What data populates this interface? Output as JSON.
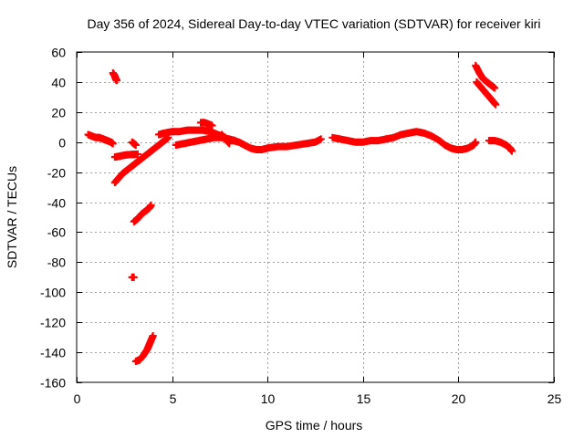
{
  "chart_data": {
    "type": "scatter",
    "title": "Day 356 of 2024, Sidereal Day-to-day VTEC variation (SDTVAR) for receiver kiri",
    "xlabel": "GPS time / hours",
    "ylabel": "SDTVAR / TECUs",
    "xlim": [
      0,
      25
    ],
    "ylim": [
      -160,
      60
    ],
    "xticks": [
      0,
      5,
      10,
      15,
      20,
      25
    ],
    "yticks": [
      -160,
      -140,
      -120,
      -100,
      -80,
      -60,
      -40,
      -20,
      0,
      20,
      40,
      60
    ],
    "grid": true,
    "marker": "plus",
    "color": "#ff0000",
    "segments": [
      {
        "x": [
          0.6,
          0.8,
          1.0,
          1.2,
          1.4,
          1.6,
          1.8,
          1.9
        ],
        "y": [
          5,
          4,
          3,
          3,
          2,
          1,
          0,
          -1
        ]
      },
      {
        "x": [
          1.9,
          2.0,
          2.05,
          2.1
        ],
        "y": [
          46,
          44,
          42,
          41
        ]
      },
      {
        "x": [
          2.0,
          2.2,
          2.4,
          2.6,
          2.8,
          3.0,
          3.2
        ],
        "y": [
          -10,
          -9.5,
          -9,
          -8.5,
          -8.3,
          -8.2,
          -8
        ]
      },
      {
        "x": [
          2.9,
          3.0,
          3.1
        ],
        "y": [
          0,
          -1,
          -2
        ]
      },
      {
        "x": [
          2.0,
          2.2,
          2.4,
          2.6,
          2.8,
          3.0,
          3.2,
          3.4,
          3.6,
          3.8,
          4.0,
          4.2,
          4.4,
          4.6,
          4.8
        ],
        "y": [
          -27,
          -24,
          -21,
          -19,
          -17,
          -15,
          -13,
          -11,
          -9,
          -7,
          -5,
          -3,
          -1,
          1,
          3
        ]
      },
      {
        "x": [
          3.0,
          3.2,
          3.4,
          3.6,
          3.8,
          3.9
        ],
        "y": [
          -53,
          -51,
          -48,
          -46,
          -44,
          -42
        ]
      },
      {
        "x": [
          2.9,
          3.0
        ],
        "y": [
          -90,
          -90
        ]
      },
      {
        "x": [
          3.1,
          3.3,
          3.5,
          3.7,
          3.8,
          3.9,
          4.0
        ],
        "y": [
          -146,
          -145,
          -142,
          -138,
          -135,
          -132,
          -129
        ]
      },
      {
        "x": [
          4.3,
          4.6,
          5.0,
          5.4,
          5.8,
          6.2,
          6.6,
          7.0,
          7.4,
          7.8
        ],
        "y": [
          5,
          6,
          7,
          7,
          8,
          8,
          8,
          7,
          5,
          3
        ]
      },
      {
        "x": [
          5.2,
          5.6,
          6.0,
          6.4,
          6.8,
          7.2,
          7.6,
          8.0,
          8.3
        ],
        "y": [
          -2,
          -1,
          0,
          1,
          2,
          3,
          3,
          2,
          1
        ]
      },
      {
        "x": [
          6.5,
          6.7,
          6.9,
          7.1
        ],
        "y": [
          13,
          13,
          12,
          11
        ]
      },
      {
        "x": [
          7.6,
          7.8,
          8.0
        ],
        "y": [
          5,
          2,
          -1
        ]
      },
      {
        "x": [
          8.2,
          8.5,
          8.8,
          9.1,
          9.4,
          9.7,
          10.0,
          10.5,
          11.0,
          11.5,
          12.0,
          12.5,
          12.8
        ],
        "y": [
          1,
          0,
          -2,
          -4,
          -5,
          -5,
          -4,
          -3,
          -3,
          -2,
          -1,
          0,
          2
        ]
      },
      {
        "x": [
          13.4,
          13.8,
          14.2,
          14.6,
          15.0,
          15.4,
          15.8,
          16.2
        ],
        "y": [
          3,
          2,
          1,
          0,
          0,
          1,
          1,
          2
        ]
      },
      {
        "x": [
          16.2,
          16.6,
          17.0,
          17.4,
          17.8,
          18.2,
          18.6,
          19.0
        ],
        "y": [
          2,
          3,
          5,
          6,
          7,
          6,
          4,
          1
        ]
      },
      {
        "x": [
          19.0,
          19.3,
          19.6,
          19.9,
          20.2,
          20.5,
          20.8,
          20.9
        ],
        "y": [
          1,
          -2,
          -4,
          -5,
          -5,
          -4,
          -2,
          0
        ]
      },
      {
        "x": [
          20.9,
          21.1,
          21.3,
          21.5,
          21.7,
          21.9
        ],
        "y": [
          51,
          46,
          42,
          40,
          38,
          36
        ]
      },
      {
        "x": [
          20.95,
          21.15,
          21.35,
          21.55,
          21.75,
          21.95
        ],
        "y": [
          40,
          37,
          34,
          31,
          28,
          25
        ]
      },
      {
        "x": [
          21.6,
          21.9,
          22.2,
          22.5,
          22.7,
          22.8
        ],
        "y": [
          1,
          1,
          0,
          -2,
          -4,
          -6
        ]
      }
    ]
  }
}
